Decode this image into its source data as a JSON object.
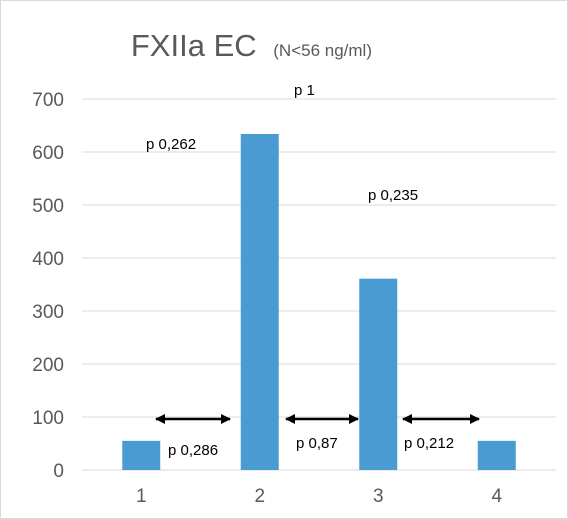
{
  "chart_data": {
    "type": "bar",
    "title": "FXIIa EC",
    "subtitle": "(N<56 ng/ml)",
    "xlabel": "",
    "ylabel": "",
    "categories": [
      "1",
      "2",
      "3",
      "4"
    ],
    "values": [
      55,
      634,
      361,
      55
    ],
    "ylim": [
      0,
      700
    ],
    "yticks": [
      0,
      100,
      200,
      300,
      400,
      500,
      600,
      700
    ],
    "grid": true,
    "legend": "none",
    "bar_color": "#4a9bd1",
    "annotations": {
      "p_top": "p 1",
      "p_1_2": "p 0,262",
      "p_2_3": "p 0,235",
      "p_arrow_1_2": "p 0,286",
      "p_arrow_2_3": "p 0,87",
      "p_arrow_3_4": "p 0,212"
    }
  }
}
